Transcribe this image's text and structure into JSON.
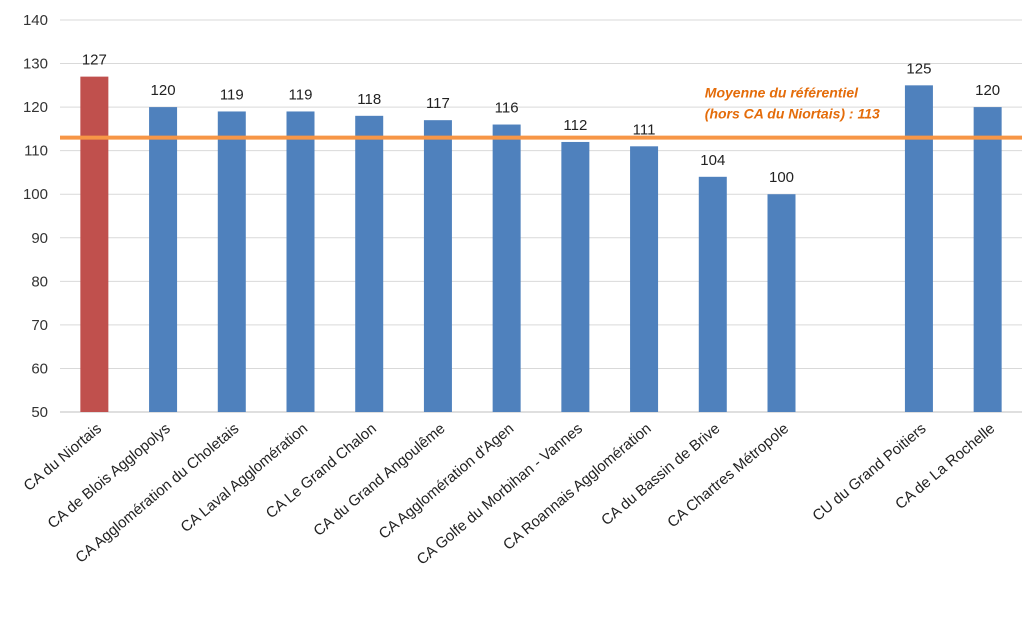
{
  "chart_data": {
    "type": "bar",
    "title": "",
    "xlabel": "",
    "ylabel": "",
    "ylim": [
      50,
      140
    ],
    "yticks": [
      50,
      60,
      70,
      80,
      90,
      100,
      110,
      120,
      130,
      140
    ],
    "grid": true,
    "categories": [
      "CA du Niortais",
      "CA de Blois Agglopolys",
      "CA Agglomération du Choletais",
      "CA Laval Agglomération",
      "CA Le Grand Chalon",
      "CA du Grand Angoulême",
      "CA Agglomération d'Agen",
      "CA Golfe du Morbihan - Vannes",
      "CA Roannais Agglomération",
      "CA du Bassin de Brive",
      "CA Chartres Métropole",
      "",
      "CU du Grand Poitiers",
      "CA de La Rochelle"
    ],
    "values": [
      127,
      120,
      119,
      119,
      118,
      117,
      116,
      112,
      111,
      104,
      100,
      null,
      125,
      120
    ],
    "value_labels": [
      "127",
      "120",
      "119",
      "119",
      "118",
      "117",
      "116",
      "112",
      "111",
      "104",
      "100",
      "",
      "125",
      "120"
    ],
    "highlight_index": 0,
    "reference_line": {
      "value": 113,
      "label_line1": "Moyenne du référentiel",
      "label_line2": "(hors CA du Niortais) : 113"
    },
    "colors": {
      "bar": "#4F81BD",
      "highlight": "#C0504D",
      "reference": "#F79646",
      "reference_text": "#E46C0A",
      "grid": "#D9D9D9",
      "axis": "#BFBFBF"
    }
  }
}
